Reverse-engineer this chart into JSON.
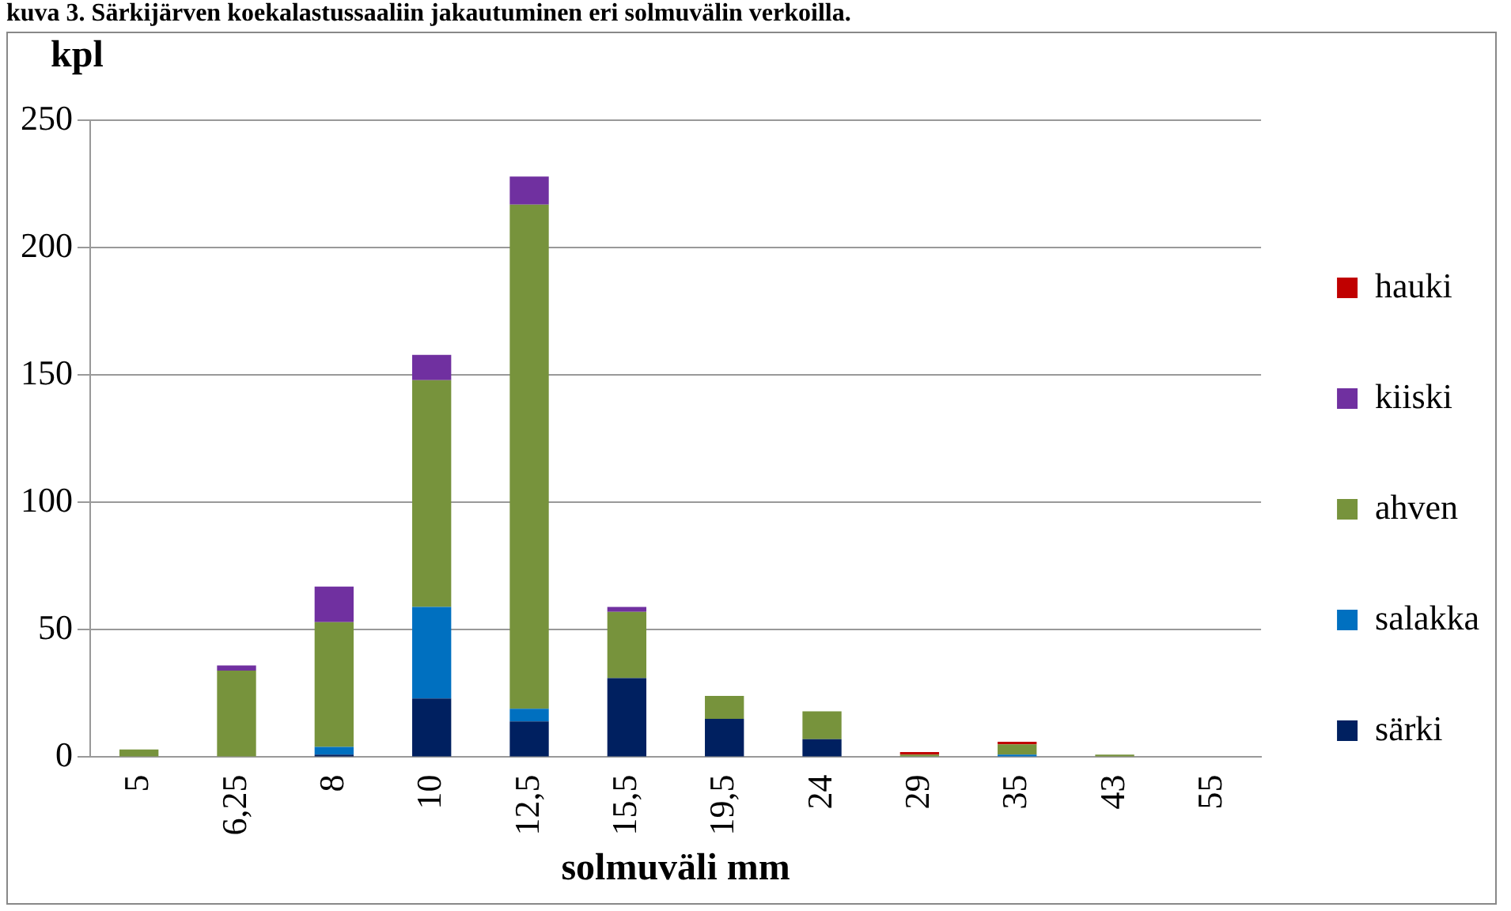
{
  "chart_data": {
    "type": "bar",
    "title": "kuva 3. Särkijärven koekalastussaaliin jakautuminen eri solmuvälin verkoilla.",
    "xlabel": "solmuväli mm",
    "ylabel": "kpl",
    "stacked": true,
    "categories": [
      "5",
      "6,25",
      "8",
      "10",
      "12,5",
      "15,5",
      "19,5",
      "24",
      "29",
      "35",
      "43",
      "55"
    ],
    "series": [
      {
        "name": "särki",
        "color": "#002060",
        "values": [
          0,
          0,
          1,
          23,
          14,
          31,
          15,
          7,
          0,
          0,
          0,
          0
        ]
      },
      {
        "name": "salakka",
        "color": "#0070c0",
        "values": [
          0,
          0,
          3,
          36,
          5,
          0,
          0,
          0,
          0,
          1,
          0,
          0
        ]
      },
      {
        "name": "ahven",
        "color": "#77933c",
        "values": [
          3,
          34,
          49,
          89,
          198,
          26,
          9,
          11,
          1,
          4,
          1,
          0
        ]
      },
      {
        "name": "kiiski",
        "color": "#7030a0",
        "values": [
          0,
          2,
          14,
          10,
          11,
          2,
          0,
          0,
          0,
          0,
          0,
          0
        ]
      },
      {
        "name": "hauki",
        "color": "#c00000",
        "values": [
          0,
          0,
          0,
          0,
          0,
          0,
          0,
          0,
          1,
          1,
          0,
          0
        ]
      }
    ],
    "ylim": [
      0,
      250
    ],
    "yticks": [
      0,
      50,
      100,
      150,
      200,
      250
    ],
    "grid": "y",
    "legend": "right"
  }
}
